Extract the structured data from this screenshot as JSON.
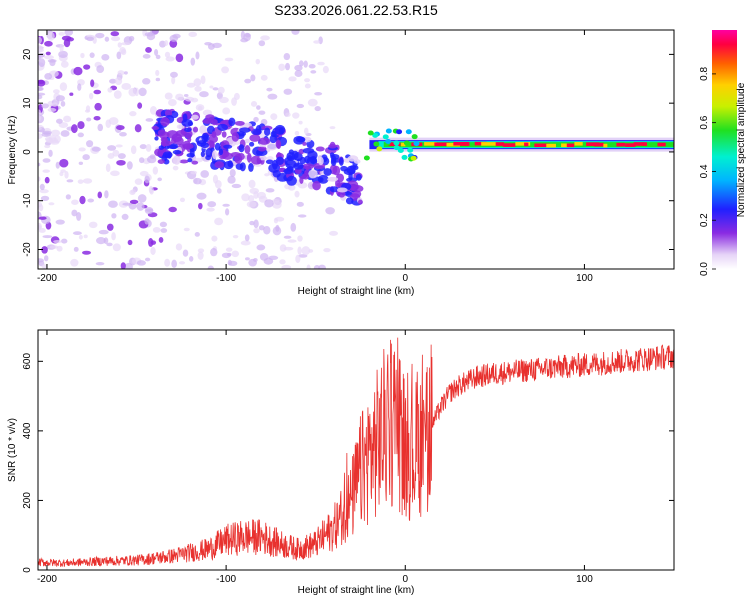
{
  "title": "S233.2026.061.22.53.R15",
  "chart_data": [
    {
      "type": "heatmap",
      "name": "spectrogram",
      "xlabel": "Height of straight line (km)",
      "ylabel": "Frequency (Hz)",
      "xlim": [
        -205,
        150
      ],
      "ylim": [
        -24,
        25
      ],
      "xticks": [
        -200,
        -100,
        0,
        100
      ],
      "yticks": [
        -20,
        -10,
        0,
        10,
        20
      ],
      "colorbar": {
        "label": "Normalized spectral amplitude",
        "range": [
          0.0,
          0.98
        ],
        "ticks": [
          0.0,
          0.2,
          0.4,
          0.6,
          0.8
        ],
        "tick_labels": [
          "0.0",
          "0.2",
          "0.4",
          "0.6",
          "0.8"
        ]
      },
      "features": [
        {
          "name": "scattered-weak-energy",
          "x_range": [
            -205,
            -100
          ],
          "freq_range": [
            -24,
            25
          ],
          "amplitude": 0.05
        },
        {
          "name": "dispersed-band",
          "x_range": [
            -140,
            -25
          ],
          "freq_center": [
            3,
            -6
          ],
          "amplitude": 0.12
        },
        {
          "name": "tone-line",
          "x_range": [
            -20,
            150
          ],
          "freq": 1.5,
          "amplitude": 0.9
        }
      ]
    },
    {
      "type": "line",
      "name": "snr",
      "xlabel": "Height of straight line (km)",
      "ylabel": "SNR (10 * v/v)",
      "xlim": [
        -205,
        150
      ],
      "ylim": [
        0,
        690
      ],
      "xticks": [
        -200,
        -100,
        0,
        100
      ],
      "yticks": [
        0,
        200,
        400,
        600
      ],
      "color": "#e8312e",
      "series": [
        {
          "name": "SNR",
          "x": [
            -205,
            -190,
            -170,
            -150,
            -130,
            -110,
            -100,
            -90,
            -80,
            -70,
            -60,
            -50,
            -40,
            -30,
            -25,
            -20,
            -15,
            -10,
            -5,
            0,
            5,
            10,
            15,
            20,
            25,
            30,
            40,
            50,
            60,
            70,
            80,
            90,
            100,
            110,
            120,
            130,
            140,
            150
          ],
          "values": [
            22,
            20,
            25,
            28,
            40,
            60,
            85,
            95,
            95,
            75,
            60,
            75,
            120,
            200,
            280,
            330,
            370,
            420,
            440,
            350,
            340,
            380,
            420,
            470,
            510,
            530,
            555,
            565,
            570,
            575,
            580,
            585,
            590,
            595,
            600,
            605,
            610,
            615
          ]
        }
      ]
    }
  ]
}
